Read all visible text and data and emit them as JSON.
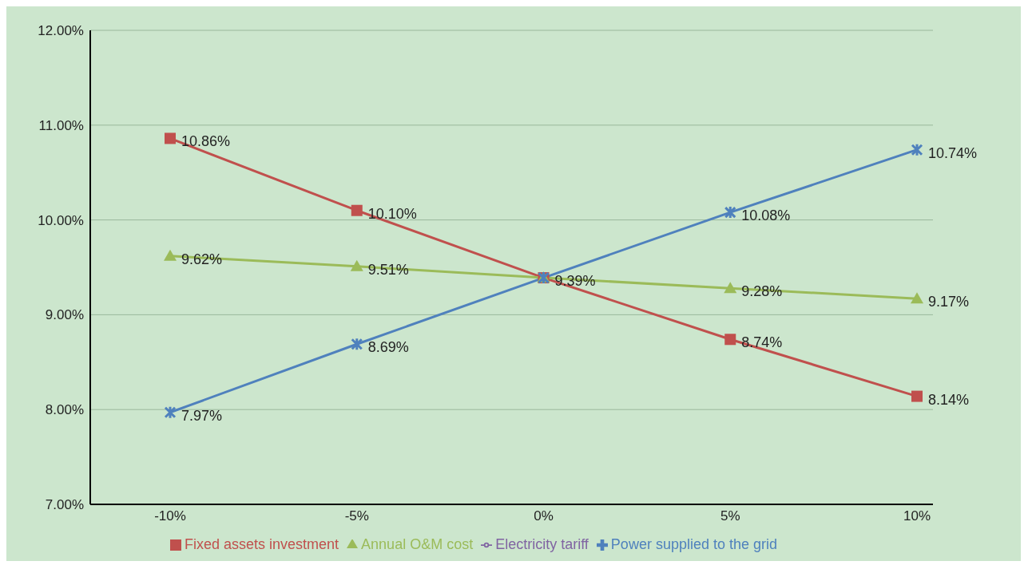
{
  "chart_data": {
    "type": "line",
    "categories": [
      "-10%",
      "-5%",
      "0%",
      "5%",
      "10%"
    ],
    "series": [
      {
        "name": "Fixed assets investment",
        "color": "#c0504d",
        "marker": "square",
        "values": [
          10.86,
          10.1,
          9.39,
          8.74,
          8.14
        ],
        "value_labels": [
          "10.86%",
          "10.10%",
          null,
          "8.74%",
          "8.14%"
        ]
      },
      {
        "name": "Annual O&M cost",
        "color": "#9bbb59",
        "marker": "triangle",
        "values": [
          9.62,
          9.51,
          9.39,
          9.28,
          9.17
        ],
        "value_labels": [
          "9.62%",
          "9.51%",
          null,
          "9.28%",
          "9.17%"
        ]
      },
      {
        "name": "Electricity tariff",
        "color": "#8064a2",
        "marker": "none",
        "values": [
          null,
          null,
          null,
          null,
          null
        ]
      },
      {
        "name": "Power supplied to the grid",
        "color": "#4f81bd",
        "marker": "cross",
        "values": [
          7.97,
          8.69,
          9.39,
          10.08,
          10.74
        ],
        "value_labels": [
          "7.97%",
          "8.69%",
          "9.39%",
          "10.08%",
          "10.74%"
        ]
      }
    ],
    "ylim": [
      7,
      12
    ],
    "yticks": [
      {
        "value": 7,
        "label": "7.00%"
      },
      {
        "value": 8,
        "label": "8.00%"
      },
      {
        "value": 9,
        "label": "9.00%"
      },
      {
        "value": 10,
        "label": "10.00%"
      },
      {
        "value": 11,
        "label": "11.00%"
      },
      {
        "value": 12,
        "label": "12.00%"
      }
    ],
    "grid": "y",
    "legend": "bottom"
  }
}
